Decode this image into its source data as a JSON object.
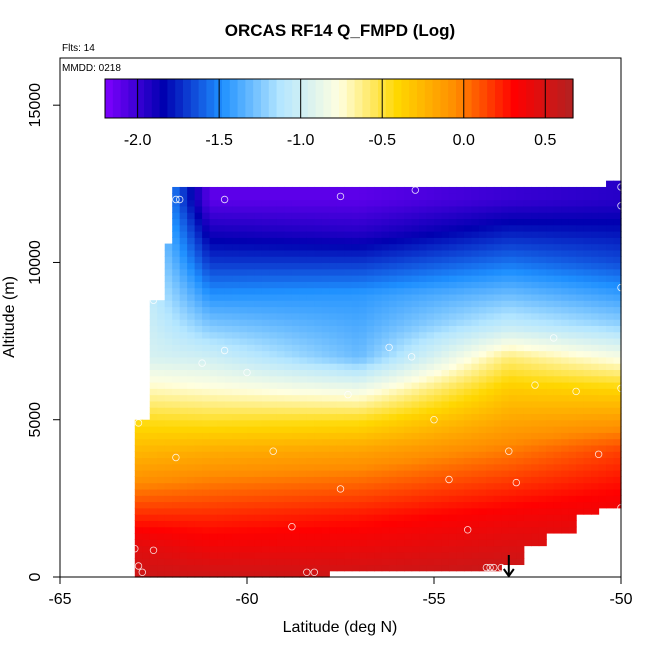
{
  "chart_data": {
    "type": "heatmap",
    "title": "ORCAS RF14 Q_FMPD (Log)",
    "flights_label": "Flts: 14",
    "date_label": "MMDD: 0218",
    "xlabel": "Latitude (deg N)",
    "ylabel": "Altitude (m)",
    "xlim": [
      -65,
      -50
    ],
    "ylim": [
      0,
      16500
    ],
    "x_ticks": [
      -65,
      -60,
      -55,
      -50
    ],
    "x_tick_labels": [
      "-65",
      "-60",
      "-55",
      "-50"
    ],
    "y_ticks": [
      0,
      5000,
      10000,
      15000
    ],
    "y_tick_labels": [
      "0",
      "5000",
      "10000",
      "15000"
    ],
    "colorbar": {
      "range": [
        -2.2,
        0.67
      ],
      "ticks": [
        -2.0,
        -1.5,
        -1.0,
        -0.5,
        0.0,
        0.5
      ],
      "tick_labels": [
        "-2.0",
        "-1.5",
        "-1.0",
        "-0.5",
        "0.0",
        "0.5"
      ],
      "colors": [
        "#7f00ff",
        "#0000b0",
        "#1e90ff",
        "#b4e6ff",
        "#ffffe0",
        "#ffd700",
        "#ff8c00",
        "#ff0000",
        "#b22222"
      ]
    },
    "grid": false,
    "legend": "top colorbar",
    "marker": {
      "x": -53,
      "y": 0,
      "symbol": "down-arrow"
    },
    "profiles": [
      {
        "lat": -63,
        "alt": [
          0,
          1000,
          2000,
          3000,
          4000,
          5000,
          6000,
          7000
        ],
        "values": [
          0.55,
          0.45,
          0.2,
          -0.05,
          -0.25,
          -0.45,
          -0.7,
          -0.95
        ]
      },
      {
        "lat": -61,
        "alt": [
          0,
          2000,
          4000,
          6000,
          8000,
          10000,
          11000,
          12000
        ],
        "values": [
          0.55,
          0.2,
          -0.2,
          -0.75,
          -1.25,
          -1.7,
          -1.9,
          -2.1
        ]
      },
      {
        "lat": -57,
        "alt": [
          0,
          2000,
          4000,
          5000,
          6000,
          7000,
          9000,
          11000,
          12000
        ],
        "values": [
          0.55,
          0.25,
          -0.15,
          -0.45,
          -0.85,
          -1.3,
          -1.45,
          -1.95,
          -2.1
        ]
      },
      {
        "lat": -53,
        "alt": [
          0,
          2000,
          4000,
          6000,
          7000,
          8000,
          10000,
          12000
        ],
        "values": [
          0.6,
          0.35,
          0.0,
          -0.35,
          -0.6,
          -1.05,
          -1.55,
          -2.0
        ]
      },
      {
        "lat": -50,
        "alt": [
          0,
          2000,
          4000,
          6000,
          8000,
          10000,
          12000
        ],
        "values": [
          0.6,
          0.4,
          0.15,
          -0.4,
          -1.2,
          -1.65,
          -1.95
        ]
      }
    ],
    "sample_points": [
      [
        -63,
        900
      ],
      [
        -62.9,
        4900
      ],
      [
        -62.9,
        350
      ],
      [
        -62.8,
        150
      ],
      [
        -62.5,
        8800
      ],
      [
        -62.5,
        850
      ],
      [
        -61.9,
        3800
      ],
      [
        -61.9,
        12000
      ],
      [
        -61.8,
        12000
      ],
      [
        -61.2,
        6800
      ],
      [
        -60.6,
        7200
      ],
      [
        -60.6,
        12000
      ],
      [
        -60,
        6500
      ],
      [
        -59.3,
        4000
      ],
      [
        -58.8,
        1600
      ],
      [
        -58.4,
        150
      ],
      [
        -58.2,
        150
      ],
      [
        -57.5,
        2800
      ],
      [
        -57.5,
        12100
      ],
      [
        -57.3,
        5800
      ],
      [
        -56.2,
        7300
      ],
      [
        -55.5,
        12300
      ],
      [
        -55.6,
        7000
      ],
      [
        -55.0,
        5000
      ],
      [
        -54.6,
        3100
      ],
      [
        -54.1,
        1500
      ],
      [
        -53.6,
        300
      ],
      [
        -53.5,
        300
      ],
      [
        -53.4,
        300
      ],
      [
        -53.2,
        300
      ],
      [
        -53.0,
        4000
      ],
      [
        -52.8,
        3000
      ],
      [
        -52.3,
        6100
      ],
      [
        -51.8,
        7600
      ],
      [
        -51.2,
        5900
      ],
      [
        -50.6,
        3900
      ],
      [
        -50.0,
        12400
      ],
      [
        -50.0,
        11800
      ],
      [
        -50.0,
        9200
      ],
      [
        -50.0,
        6000
      ],
      [
        -50.0,
        2200
      ]
    ]
  }
}
